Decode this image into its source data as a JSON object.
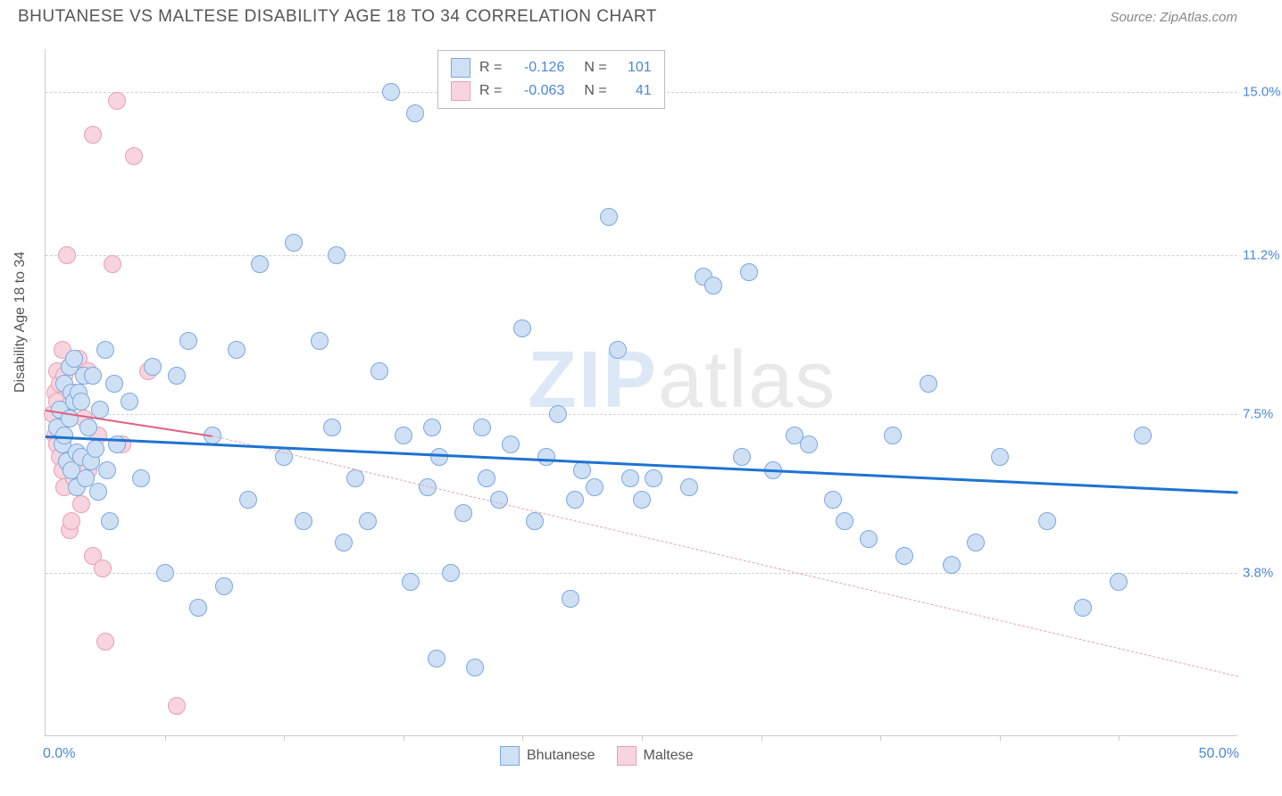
{
  "title": "BHUTANESE VS MALTESE DISABILITY AGE 18 TO 34 CORRELATION CHART",
  "source": "Source: ZipAtlas.com",
  "y_axis_title": "Disability Age 18 to 34",
  "watermark": {
    "part1": "ZIP",
    "part2": "atlas"
  },
  "chart": {
    "type": "scatter",
    "xlim": [
      0,
      50
    ],
    "ylim": [
      0,
      16
    ],
    "x_label_min": "0.0%",
    "x_label_max": "50.0%",
    "x_ticks": [
      5,
      10,
      15,
      20,
      25,
      30,
      35,
      40,
      45
    ],
    "y_gridlines": [
      {
        "value": 15.0,
        "label": "15.0%"
      },
      {
        "value": 11.2,
        "label": "11.2%"
      },
      {
        "value": 7.5,
        "label": "7.5%"
      },
      {
        "value": 3.8,
        "label": "3.8%"
      }
    ],
    "background_color": "#ffffff",
    "grid_color": "#d0d0d0",
    "axis_color": "#cccccc",
    "tick_label_color": "#4a88d8",
    "marker_radius": 10,
    "marker_stroke_width": 1.5,
    "series": {
      "bhutanese": {
        "label": "Bhutanese",
        "fill": "#cfe0f5",
        "stroke": "#7aa8e0",
        "R": "-0.126",
        "N": "101",
        "trend": {
          "x1": 0,
          "y1": 7.0,
          "x2": 50,
          "y2": 5.7,
          "color": "#1e73d2",
          "width": 3,
          "dash": "solid"
        },
        "points": [
          [
            0.5,
            7.2
          ],
          [
            0.6,
            7.6
          ],
          [
            0.7,
            6.8
          ],
          [
            0.8,
            8.2
          ],
          [
            0.8,
            7.0
          ],
          [
            0.9,
            6.4
          ],
          [
            1.0,
            8.6
          ],
          [
            1.0,
            7.4
          ],
          [
            1.1,
            6.2
          ],
          [
            1.1,
            8.0
          ],
          [
            1.2,
            8.8
          ],
          [
            1.2,
            7.8
          ],
          [
            1.3,
            5.8
          ],
          [
            1.3,
            6.6
          ],
          [
            1.4,
            8.0
          ],
          [
            1.5,
            7.8
          ],
          [
            1.5,
            6.5
          ],
          [
            1.6,
            8.4
          ],
          [
            1.7,
            6.0
          ],
          [
            1.8,
            7.2
          ],
          [
            1.9,
            6.4
          ],
          [
            2.0,
            8.4
          ],
          [
            2.1,
            6.7
          ],
          [
            2.2,
            5.7
          ],
          [
            2.3,
            7.6
          ],
          [
            2.5,
            9.0
          ],
          [
            2.6,
            6.2
          ],
          [
            2.7,
            5.0
          ],
          [
            2.9,
            8.2
          ],
          [
            3.0,
            6.8
          ],
          [
            3.5,
            7.8
          ],
          [
            4.0,
            6.0
          ],
          [
            4.5,
            8.6
          ],
          [
            5.0,
            3.8
          ],
          [
            5.5,
            8.4
          ],
          [
            6.0,
            9.2
          ],
          [
            6.4,
            3.0
          ],
          [
            7.0,
            7.0
          ],
          [
            7.5,
            3.5
          ],
          [
            8.0,
            9.0
          ],
          [
            8.5,
            5.5
          ],
          [
            9.0,
            11.0
          ],
          [
            10.0,
            6.5
          ],
          [
            10.4,
            11.5
          ],
          [
            10.8,
            5.0
          ],
          [
            11.5,
            9.2
          ],
          [
            12.0,
            7.2
          ],
          [
            12.2,
            11.2
          ],
          [
            12.5,
            4.5
          ],
          [
            13.0,
            6.0
          ],
          [
            13.5,
            5.0
          ],
          [
            14.0,
            8.5
          ],
          [
            14.5,
            15.0
          ],
          [
            15.0,
            7.0
          ],
          [
            15.3,
            3.6
          ],
          [
            15.5,
            14.5
          ],
          [
            16.0,
            5.8
          ],
          [
            16.2,
            7.2
          ],
          [
            16.4,
            1.8
          ],
          [
            16.5,
            6.5
          ],
          [
            17.0,
            3.8
          ],
          [
            17.5,
            5.2
          ],
          [
            18.0,
            1.6
          ],
          [
            18.3,
            7.2
          ],
          [
            18.5,
            6.0
          ],
          [
            19.0,
            5.5
          ],
          [
            19.5,
            6.8
          ],
          [
            20.0,
            9.5
          ],
          [
            20.5,
            5.0
          ],
          [
            21.0,
            6.5
          ],
          [
            21.5,
            7.5
          ],
          [
            22.0,
            3.2
          ],
          [
            22.2,
            5.5
          ],
          [
            22.5,
            6.2
          ],
          [
            23.0,
            5.8
          ],
          [
            23.6,
            12.1
          ],
          [
            24.0,
            9.0
          ],
          [
            24.5,
            6.0
          ],
          [
            25.0,
            5.5
          ],
          [
            25.5,
            6.0
          ],
          [
            27.0,
            5.8
          ],
          [
            27.6,
            10.7
          ],
          [
            28.0,
            10.5
          ],
          [
            29.2,
            6.5
          ],
          [
            29.5,
            10.8
          ],
          [
            30.5,
            6.2
          ],
          [
            31.4,
            7.0
          ],
          [
            32.0,
            6.8
          ],
          [
            33.0,
            5.5
          ],
          [
            33.5,
            5.0
          ],
          [
            34.5,
            4.6
          ],
          [
            35.5,
            7.0
          ],
          [
            36.0,
            4.2
          ],
          [
            37.0,
            8.2
          ],
          [
            38.0,
            4.0
          ],
          [
            39.0,
            4.5
          ],
          [
            40.0,
            6.5
          ],
          [
            42.0,
            5.0
          ],
          [
            43.5,
            3.0
          ],
          [
            45.0,
            3.6
          ],
          [
            46.0,
            7.0
          ]
        ]
      },
      "maltese": {
        "label": "Maltese",
        "fill": "#f7d4de",
        "stroke": "#e8a0b5",
        "R": "-0.063",
        "N": "41",
        "trend_solid": {
          "x1": 0,
          "y1": 7.6,
          "x2": 7,
          "y2": 7.0,
          "color": "#e0607f",
          "width": 2.5,
          "dash": "solid"
        },
        "trend_dash": {
          "x1": 7,
          "y1": 7.0,
          "x2": 50,
          "y2": 1.4,
          "color": "#e8a0b5",
          "width": 1.5,
          "dash": "dashed"
        },
        "points": [
          [
            0.3,
            7.5
          ],
          [
            0.4,
            8.0
          ],
          [
            0.4,
            7.0
          ],
          [
            0.5,
            8.5
          ],
          [
            0.5,
            6.8
          ],
          [
            0.5,
            7.8
          ],
          [
            0.6,
            8.2
          ],
          [
            0.6,
            6.5
          ],
          [
            0.6,
            7.2
          ],
          [
            0.7,
            9.0
          ],
          [
            0.7,
            7.6
          ],
          [
            0.7,
            6.2
          ],
          [
            0.8,
            8.4
          ],
          [
            0.8,
            5.8
          ],
          [
            0.8,
            7.0
          ],
          [
            0.9,
            11.2
          ],
          [
            0.9,
            6.4
          ],
          [
            0.9,
            7.5
          ],
          [
            1.0,
            8.6
          ],
          [
            1.0,
            4.8
          ],
          [
            1.1,
            7.8
          ],
          [
            1.1,
            5.0
          ],
          [
            1.2,
            6.0
          ],
          [
            1.2,
            8.0
          ],
          [
            1.3,
            6.6
          ],
          [
            1.4,
            8.8
          ],
          [
            1.5,
            5.4
          ],
          [
            1.6,
            7.4
          ],
          [
            1.8,
            6.2
          ],
          [
            1.8,
            8.5
          ],
          [
            2.0,
            14.0
          ],
          [
            2.0,
            4.2
          ],
          [
            2.2,
            7.0
          ],
          [
            2.4,
            3.9
          ],
          [
            2.5,
            2.2
          ],
          [
            2.8,
            11.0
          ],
          [
            3.0,
            14.8
          ],
          [
            3.2,
            6.8
          ],
          [
            3.7,
            13.5
          ],
          [
            4.3,
            8.5
          ],
          [
            5.5,
            0.7
          ]
        ]
      }
    },
    "legend_top": {
      "swatch_size": 22
    },
    "legend_bottom": {
      "swatch_size": 22
    }
  }
}
